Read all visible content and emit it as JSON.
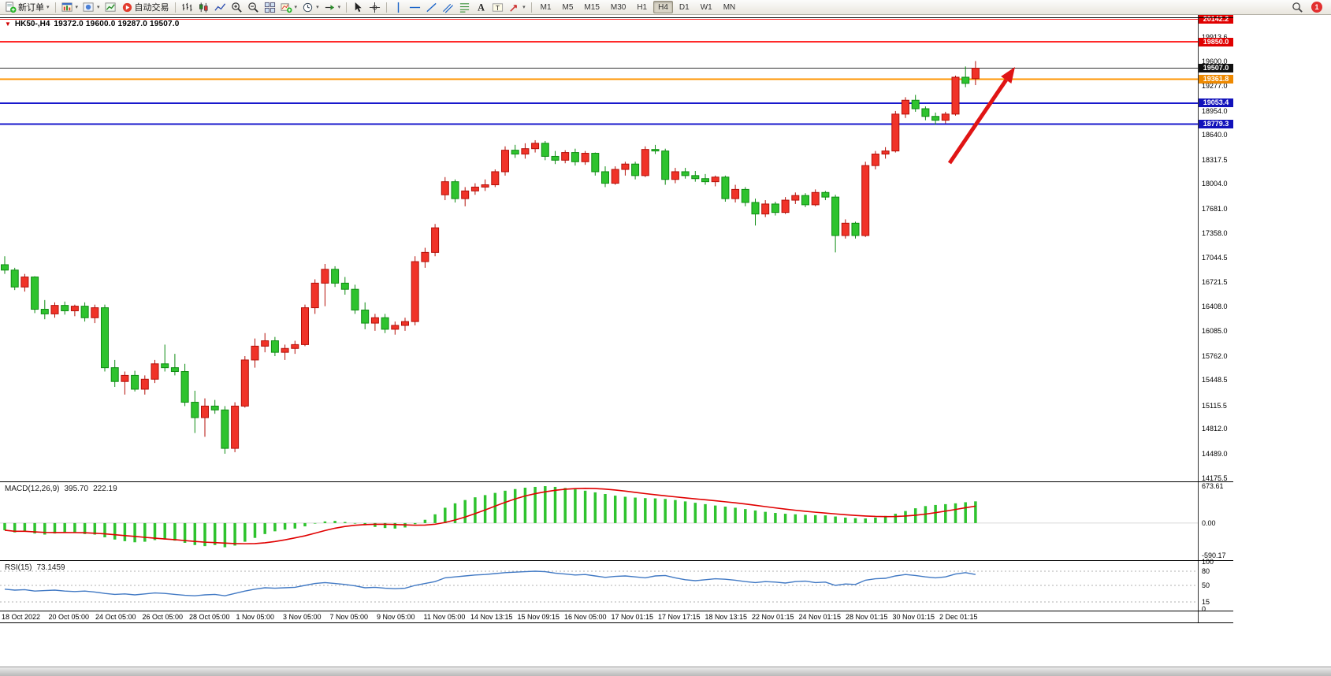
{
  "toolbar": {
    "buttons": [
      {
        "icon": "new-order",
        "label": "新订单",
        "name": "new-order-button",
        "caret": true
      },
      {
        "sep": true
      },
      {
        "icon": "chart-window",
        "name": "new-chart-button",
        "caret": true
      },
      {
        "icon": "profiles",
        "name": "profiles-button",
        "caret": true
      },
      {
        "icon": "market-watch",
        "name": "market-watch-button"
      },
      {
        "icon": "autotrade",
        "label": "自动交易",
        "name": "autotrade-button"
      },
      {
        "sep": true
      },
      {
        "icon": "bars-chart",
        "name": "bars-chart-button"
      },
      {
        "icon": "candles-chart",
        "name": "candlestick-chart-button"
      },
      {
        "icon": "line-chart",
        "name": "line-chart-button"
      },
      {
        "icon": "zoom-in",
        "name": "zoom-in-button"
      },
      {
        "icon": "zoom-out",
        "name": "zoom-out-button"
      },
      {
        "icon": "tile-windows",
        "name": "tile-windows-button"
      },
      {
        "icon": "indicators",
        "name": "indicators-button",
        "caret": true
      },
      {
        "icon": "clock",
        "name": "periods-button",
        "caret": true
      },
      {
        "icon": "chart-shift",
        "name": "chart-shift-button",
        "caret": true
      },
      {
        "sep": true
      },
      {
        "icon": "cursor",
        "name": "cursor-tool-button"
      },
      {
        "icon": "crosshair",
        "name": "crosshair-tool-button"
      },
      {
        "sep": true
      },
      {
        "icon": "vline",
        "name": "vertical-line-tool-button"
      },
      {
        "icon": "hline",
        "name": "horizontal-line-tool-button"
      },
      {
        "icon": "trendline",
        "name": "trendline-tool-button"
      },
      {
        "icon": "channel",
        "name": "channel-tool-button"
      },
      {
        "icon": "fibonacci",
        "name": "fibonacci-tool-button"
      },
      {
        "icon": "text",
        "name": "text-tool-button"
      },
      {
        "icon": "label",
        "name": "text-label-tool-button"
      },
      {
        "icon": "arrows",
        "name": "arrows-tool-button",
        "caret": true
      },
      {
        "sep": true
      }
    ],
    "timeframes": [
      "M1",
      "M5",
      "M15",
      "M30",
      "H1",
      "H4",
      "D1",
      "W1",
      "MN"
    ],
    "active_timeframe": "H4",
    "notification_count": "1"
  },
  "chart": {
    "title_symbol": "HK50-,H4",
    "title_ohlc": "19372.0 19600.0 19287.0 19507.0"
  },
  "colors": {
    "bull": "#f03328",
    "bull_stroke": "#b40f08",
    "bear": "#2ec32e",
    "bear_stroke": "#0e8c12",
    "macd_bar": "#2ec32e",
    "macd_signal": "#e00000",
    "rsi_line": "#4179c4",
    "rsi_level": "#999999",
    "arrow": "#e01414"
  },
  "chart_data": {
    "type": "candlestick",
    "symbol": "HK50",
    "timeframe": "H4",
    "ohlc_current": {
      "open": 19372.0,
      "high": 19600.0,
      "low": 19287.0,
      "close": 19507.0
    },
    "candles": [
      [
        16950,
        17060,
        16830,
        16880
      ],
      [
        16880,
        16910,
        16620,
        16660
      ],
      [
        16660,
        16830,
        16600,
        16790
      ],
      [
        16790,
        16800,
        16320,
        16370
      ],
      [
        16370,
        16490,
        16240,
        16310
      ],
      [
        16310,
        16460,
        16260,
        16420
      ],
      [
        16420,
        16470,
        16300,
        16350
      ],
      [
        16350,
        16430,
        16280,
        16410
      ],
      [
        16410,
        16460,
        16210,
        16260
      ],
      [
        16260,
        16430,
        16190,
        16390
      ],
      [
        16390,
        16430,
        15560,
        15610
      ],
      [
        15610,
        15710,
        15360,
        15430
      ],
      [
        15430,
        15560,
        15260,
        15510
      ],
      [
        15510,
        15570,
        15300,
        15330
      ],
      [
        15330,
        15510,
        15260,
        15460
      ],
      [
        15460,
        15710,
        15410,
        15660
      ],
      [
        15660,
        15910,
        15560,
        15610
      ],
      [
        15610,
        15790,
        15510,
        15560
      ],
      [
        15560,
        15660,
        15110,
        15160
      ],
      [
        15160,
        15310,
        14760,
        14960
      ],
      [
        14960,
        15210,
        14710,
        15110
      ],
      [
        15110,
        15190,
        15010,
        15060
      ],
      [
        15060,
        15110,
        14490,
        14560
      ],
      [
        14560,
        15160,
        14510,
        15110
      ],
      [
        15110,
        15760,
        15090,
        15710
      ],
      [
        15710,
        15990,
        15610,
        15890
      ],
      [
        15890,
        16060,
        15810,
        15960
      ],
      [
        15960,
        16010,
        15760,
        15810
      ],
      [
        15810,
        15910,
        15710,
        15860
      ],
      [
        15860,
        15960,
        15790,
        15910
      ],
      [
        15910,
        16430,
        15890,
        16390
      ],
      [
        16390,
        16760,
        16310,
        16710
      ],
      [
        16710,
        16960,
        16410,
        16890
      ],
      [
        16890,
        16930,
        16660,
        16710
      ],
      [
        16710,
        16790,
        16560,
        16630
      ],
      [
        16630,
        16690,
        16310,
        16360
      ],
      [
        16360,
        16460,
        16110,
        16190
      ],
      [
        16190,
        16310,
        16090,
        16260
      ],
      [
        16260,
        16310,
        16060,
        16110
      ],
      [
        16110,
        16210,
        16040,
        16160
      ],
      [
        16160,
        16260,
        16090,
        16210
      ],
      [
        16210,
        17060,
        16160,
        16990
      ],
      [
        16990,
        17170,
        16910,
        17110
      ],
      [
        17110,
        17480,
        17060,
        17430
      ],
      [
        17860,
        18090,
        17790,
        18030
      ],
      [
        18030,
        18060,
        17760,
        17810
      ],
      [
        17810,
        17960,
        17710,
        17910
      ],
      [
        17910,
        18010,
        17860,
        17960
      ],
      [
        17960,
        18060,
        17910,
        17990
      ],
      [
        17990,
        18190,
        17960,
        18160
      ],
      [
        18160,
        18490,
        18110,
        18440
      ],
      [
        18440,
        18510,
        18340,
        18390
      ],
      [
        18390,
        18530,
        18330,
        18460
      ],
      [
        18460,
        18570,
        18410,
        18530
      ],
      [
        18530,
        18560,
        18310,
        18360
      ],
      [
        18360,
        18430,
        18260,
        18310
      ],
      [
        18310,
        18440,
        18270,
        18410
      ],
      [
        18410,
        18460,
        18240,
        18290
      ],
      [
        18290,
        18430,
        18250,
        18400
      ],
      [
        18400,
        18410,
        18110,
        18160
      ],
      [
        18160,
        18230,
        17960,
        18010
      ],
      [
        18010,
        18230,
        17990,
        18190
      ],
      [
        18190,
        18290,
        18110,
        18260
      ],
      [
        18260,
        18290,
        18060,
        18110
      ],
      [
        18110,
        18490,
        18090,
        18450
      ],
      [
        18450,
        18510,
        18390,
        18430
      ],
      [
        18430,
        18460,
        17990,
        18060
      ],
      [
        18060,
        18210,
        18010,
        18160
      ],
      [
        18160,
        18210,
        18070,
        18110
      ],
      [
        18110,
        18170,
        18030,
        18070
      ],
      [
        18070,
        18130,
        17990,
        18030
      ],
      [
        18030,
        18110,
        17970,
        18090
      ],
      [
        18090,
        18110,
        17770,
        17810
      ],
      [
        17810,
        17990,
        17760,
        17930
      ],
      [
        17930,
        17960,
        17710,
        17760
      ],
      [
        17760,
        17810,
        17460,
        17610
      ],
      [
        17610,
        17790,
        17570,
        17740
      ],
      [
        17740,
        17770,
        17590,
        17630
      ],
      [
        17630,
        17830,
        17610,
        17790
      ],
      [
        17790,
        17890,
        17740,
        17850
      ],
      [
        17850,
        17880,
        17700,
        17730
      ],
      [
        17730,
        17930,
        17710,
        17890
      ],
      [
        17890,
        17910,
        17790,
        17830
      ],
      [
        17830,
        17860,
        17110,
        17330
      ],
      [
        17330,
        17540,
        17290,
        17490
      ],
      [
        17490,
        17510,
        17290,
        17330
      ],
      [
        17330,
        18290,
        17310,
        18240
      ],
      [
        18240,
        18430,
        18190,
        18390
      ],
      [
        18390,
        18480,
        18330,
        18430
      ],
      [
        18430,
        18950,
        18410,
        18910
      ],
      [
        18910,
        19130,
        18860,
        19090
      ],
      [
        19090,
        19160,
        18940,
        18980
      ],
      [
        18980,
        19010,
        18830,
        18880
      ],
      [
        18880,
        18930,
        18770,
        18830
      ],
      [
        18830,
        18940,
        18790,
        18910
      ],
      [
        18910,
        19410,
        18890,
        19390
      ],
      [
        19390,
        19530,
        19260,
        19310
      ],
      [
        19372,
        19600,
        19287,
        19507
      ]
    ],
    "levels": [
      {
        "value": 20142.2,
        "label": "20142.2",
        "line": "#ff2a2a",
        "badge": "#e00000",
        "width": 1
      },
      {
        "value": 19850.0,
        "label": "19850.0",
        "line": "#ff2a2a",
        "badge": "#e00000",
        "width": 2
      },
      {
        "value": 19507.0,
        "label": "19507.0",
        "line": "#333333",
        "badge": "#101010",
        "width": 1
      },
      {
        "value": 19361.8,
        "label": "19361.8",
        "line": "#ff9400",
        "badge": "#ee8900",
        "width": 2
      },
      {
        "value": 19053.4,
        "label": "19053.4",
        "line": "#1818cc",
        "badge": "#1212bb",
        "width": 2
      },
      {
        "value": 18779.3,
        "label": "18779.3",
        "line": "#1818cc",
        "badge": "#1212bb",
        "width": 2
      }
    ],
    "y_axis": {
      "max": 20200,
      "min": 14130,
      "ticks": [
        {
          "v": 19913.6,
          "t": "19913.6"
        },
        {
          "v": 19600.0,
          "t": "19600.0"
        },
        {
          "v": 19277.0,
          "t": "19277.0"
        },
        {
          "v": 18954.0,
          "t": "18954.0"
        },
        {
          "v": 18640.0,
          "t": "18640.0"
        },
        {
          "v": 18317.5,
          "t": "18317.5"
        },
        {
          "v": 18004.0,
          "t": "18004.0"
        },
        {
          "v": 17681.0,
          "t": "17681.0"
        },
        {
          "v": 17358.0,
          "t": "17358.0"
        },
        {
          "v": 17044.5,
          "t": "17044.5"
        },
        {
          "v": 16721.5,
          "t": "16721.5"
        },
        {
          "v": 16408.0,
          "t": "16408.0"
        },
        {
          "v": 16085.0,
          "t": "16085.0"
        },
        {
          "v": 15762.0,
          "t": "15762.0"
        },
        {
          "v": 15448.5,
          "t": "15448.5"
        },
        {
          "v": 15115.5,
          "t": "15115.5"
        },
        {
          "v": 14812.0,
          "t": "14812.0"
        },
        {
          "v": 14489.0,
          "t": "14489.0"
        },
        {
          "v": 14175.5,
          "t": "14175.5"
        }
      ]
    },
    "x_axis": {
      "labels": [
        "18 Oct 2022",
        "20 Oct 05:00",
        "24 Oct 05:00",
        "26 Oct 05:00",
        "28 Oct 05:00",
        "1 Nov 05:00",
        "3 Nov 05:00",
        "7 Nov 05:00",
        "9 Nov 05:00",
        "11 Nov 05:00",
        "14 Nov 13:15",
        "15 Nov 09:15",
        "16 Nov 05:00",
        "17 Nov 01:15",
        "17 Nov 17:15",
        "18 Nov 13:15",
        "22 Nov 01:15",
        "24 Nov 01:15",
        "28 Nov 01:15",
        "30 Nov 01:15",
        "2 Dec 01:15"
      ]
    },
    "annotations": [
      {
        "type": "arrow",
        "from": [
          1205,
          188
        ],
        "to": [
          1288,
          66
        ]
      }
    ],
    "macd": {
      "name": "MACD(12,26,9)",
      "value_main": "395.70",
      "value_signal": "222.19",
      "max": 673.61,
      "min": -590.17,
      "axis_labels": [
        "673.61",
        "0.00",
        "-590.17"
      ],
      "histogram": [
        -130,
        -170,
        -150,
        -190,
        -210,
        -190,
        -170,
        -180,
        -200,
        -210,
        -260,
        -300,
        -330,
        -350,
        -340,
        -310,
        -300,
        -320,
        -360,
        -400,
        -420,
        -400,
        -440,
        -410,
        -340,
        -270,
        -200,
        -150,
        -120,
        -100,
        -60,
        -10,
        30,
        40,
        20,
        -10,
        -40,
        -70,
        -90,
        -100,
        -80,
        -20,
        60,
        160,
        280,
        360,
        420,
        470,
        510,
        550,
        590,
        620,
        645,
        660,
        673,
        660,
        640,
        615,
        590,
        560,
        530,
        500,
        480,
        465,
        455,
        450,
        440,
        420,
        395,
        370,
        345,
        320,
        300,
        280,
        255,
        230,
        205,
        185,
        170,
        160,
        150,
        145,
        140,
        120,
        100,
        90,
        85,
        100,
        130,
        170,
        220,
        270,
        310,
        330,
        345,
        360,
        380,
        396
      ]
    },
    "rsi": {
      "name": "RSI(15)",
      "value": "73.1459",
      "levels": [
        80,
        50,
        15
      ],
      "axis_labels": [
        "100",
        "80",
        "50",
        "15",
        "0"
      ],
      "values": [
        42,
        40,
        41,
        38,
        39,
        40,
        38,
        37,
        38,
        36,
        33,
        31,
        32,
        30,
        32,
        34,
        33,
        31,
        29,
        28,
        30,
        31,
        28,
        33,
        38,
        42,
        45,
        44,
        45,
        46,
        50,
        54,
        56,
        54,
        52,
        49,
        45,
        46,
        44,
        43,
        44,
        50,
        54,
        58,
        66,
        68,
        70,
        72,
        73,
        75,
        77,
        78,
        79,
        80,
        79,
        76,
        74,
        72,
        73,
        70,
        67,
        69,
        70,
        68,
        66,
        70,
        71,
        66,
        62,
        60,
        62,
        64,
        63,
        61,
        58,
        56,
        58,
        57,
        55,
        58,
        59,
        56,
        57,
        50,
        53,
        52,
        61,
        64,
        65,
        70,
        73,
        71,
        68,
        66,
        68,
        74,
        77,
        73.1
      ]
    }
  }
}
